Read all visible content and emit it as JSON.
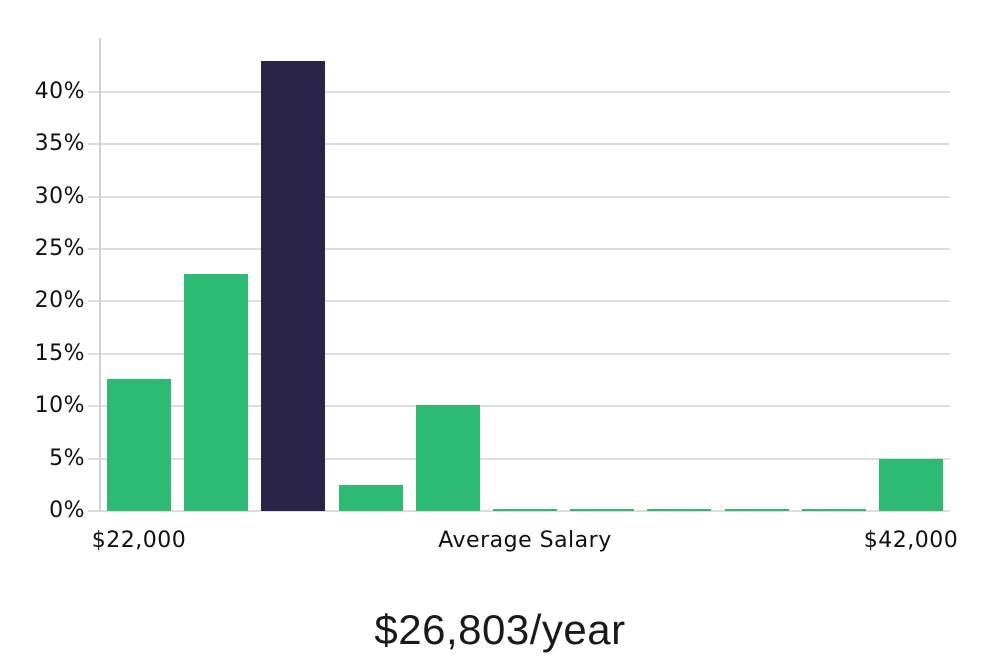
{
  "chart_data": {
    "type": "bar",
    "title": "$26,803/year",
    "xlabel": "",
    "ylabel": "",
    "grid": "horizontal",
    "legend": "none",
    "ylim": [
      0,
      45
    ],
    "y_ticks": [
      0,
      5,
      10,
      15,
      20,
      25,
      30,
      35,
      40
    ],
    "y_tick_suffix": "%",
    "bars": [
      {
        "value": 12.6,
        "role": "normal"
      },
      {
        "value": 22.6,
        "role": "normal"
      },
      {
        "value": 42.9,
        "role": "highlight"
      },
      {
        "value": 2.5,
        "role": "normal"
      },
      {
        "value": 10.1,
        "role": "normal"
      },
      {
        "value": 0.15,
        "role": "normal"
      },
      {
        "value": 0.15,
        "role": "normal"
      },
      {
        "value": 0.15,
        "role": "normal"
      },
      {
        "value": 0.15,
        "role": "normal"
      },
      {
        "value": 0.15,
        "role": "normal"
      },
      {
        "value": 5.0,
        "role": "normal"
      }
    ],
    "x_tick_labels": [
      {
        "text": "$22,000",
        "bar_index": 0
      },
      {
        "text": "Average Salary",
        "bar_index": 5
      },
      {
        "text": "$42,000",
        "bar_index": 10
      }
    ],
    "colors": {
      "normal": "#2dbb74",
      "highlight": "#2a2447",
      "gridline": "#dcdcdc",
      "spine": "#d0d0d0",
      "text": "#111111",
      "background": "#ffffff"
    }
  }
}
